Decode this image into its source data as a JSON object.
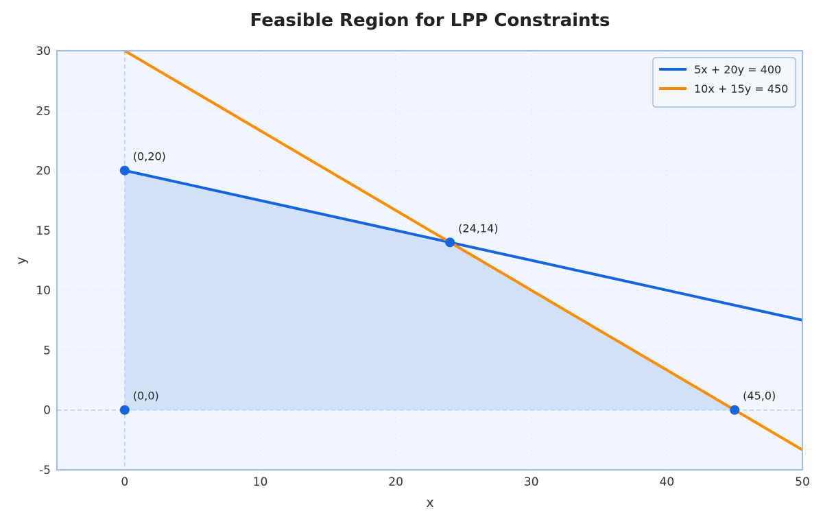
{
  "chart_data": {
    "type": "line",
    "title": "Feasible Region for LPP Constraints",
    "xlabel": "x",
    "ylabel": "y",
    "xlim": [
      -5,
      50
    ],
    "ylim": [
      -5,
      30
    ],
    "xticks": [
      0,
      10,
      20,
      30,
      40,
      50
    ],
    "yticks": [
      -5,
      0,
      5,
      10,
      15,
      20,
      25,
      30
    ],
    "grid": true,
    "legend_position": "top-right",
    "series": [
      {
        "name": "5x + 20y = 400",
        "color": "#1565e0",
        "x": [
          0,
          50
        ],
        "y": [
          20,
          7.5
        ]
      },
      {
        "name": "10x + 15y = 450",
        "color": "#ff8c00",
        "x": [
          0,
          50
        ],
        "y": [
          30,
          -3.333
        ]
      }
    ],
    "feasible_region": {
      "color": "#cfdff7",
      "vertices": [
        [
          0,
          0
        ],
        [
          0,
          20
        ],
        [
          24,
          14
        ],
        [
          45,
          0
        ]
      ]
    },
    "corner_points": [
      {
        "label": "(0,20)",
        "x": 0,
        "y": 20
      },
      {
        "label": "(24,14)",
        "x": 24,
        "y": 14
      },
      {
        "label": "(0,0)",
        "x": 0,
        "y": 0
      },
      {
        "label": "(45,0)",
        "x": 45,
        "y": 0
      }
    ],
    "reference_lines": {
      "x": 0,
      "y": 0
    },
    "colors": {
      "plot_background": "#f1f6fc",
      "frame": "#9dbdf0",
      "point": "#1565e0"
    }
  }
}
